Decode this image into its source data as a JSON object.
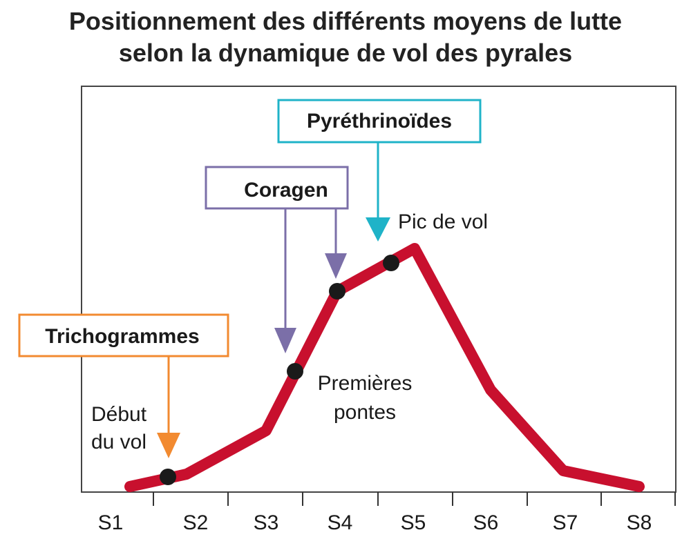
{
  "title_line1": "Positionnement des différents moyens de lutte",
  "title_line2": "selon la dynamique de vol des pyrales",
  "weeks": [
    "S1",
    "S2",
    "S3",
    "S4",
    "S5",
    "S6",
    "S7",
    "S8"
  ],
  "methods": {
    "pyrethrinoides": "Pyréthrinoïdes",
    "coragen": "Coragen",
    "trichogrammes": "Trichogrammes"
  },
  "annotations": {
    "pic_de_vol": "Pic de vol",
    "premieres_pontes_1": "Premières",
    "premieres_pontes_2": "pontes",
    "debut_du_vol_1": "Début",
    "debut_du_vol_2": "du vol"
  },
  "colors": {
    "curve": "#c8102e",
    "pyrethrinoides": "#1fb3c8",
    "coragen": "#7b6fa8",
    "trichogrammes": "#f28a30",
    "dot": "#1a1a1a"
  }
}
